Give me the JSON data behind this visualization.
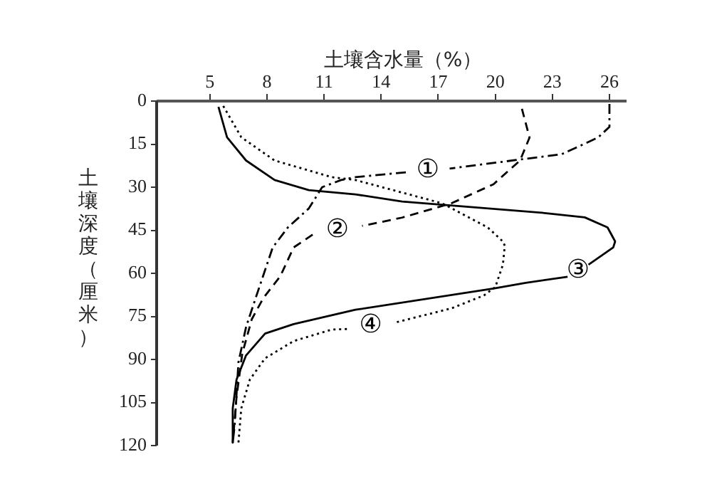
{
  "chart_data": {
    "type": "line",
    "title": "土壤含水量（%）",
    "ylabel": "土壤深度（厘米）",
    "xlim": [
      2.2,
      26.9
    ],
    "xticks": [
      5,
      8,
      11,
      14,
      17,
      20,
      23,
      26
    ],
    "ylim": [
      120,
      0
    ],
    "yticks": [
      0,
      15,
      30,
      45,
      60,
      75,
      90,
      105,
      120
    ],
    "grid": false,
    "legend": false,
    "marker": "none",
    "series": [
      {
        "name": "①",
        "color": "#000000",
        "line_style": "dashdot",
        "x": [
          26,
          26,
          25.4,
          23.5,
          17.6,
          null,
          15.3,
          12.65,
          11.9,
          10.9,
          10.2,
          9.1,
          8.3,
          7.4,
          6.9,
          6.5,
          6.3,
          6.2
        ],
        "values": [
          1,
          9,
          12.7,
          18.5,
          23.5,
          null,
          24.8,
          26.5,
          27.5,
          30,
          37.4,
          44,
          51,
          68.7,
          78.7,
          91,
          113,
          119
        ]
      },
      {
        "name": "②",
        "color": "#000000",
        "line_style": "dashed",
        "x": [
          21.4,
          21.8,
          21.3,
          19.9,
          17.7,
          15.1,
          13,
          null,
          10.4,
          9.4,
          8.7,
          7.8,
          7.2,
          6.7,
          6.4,
          6.2
        ],
        "values": [
          2.7,
          12.7,
          20.7,
          29,
          35.6,
          40.6,
          43.5,
          null,
          46.5,
          51,
          61,
          68.7,
          76,
          88,
          103,
          119
        ]
      },
      {
        "name": "③",
        "color": "#000000",
        "line_style": "solid",
        "x": [
          5.45,
          5.9,
          6.9,
          8.4,
          10.2,
          12.65,
          15.1,
          22.6,
          24.7,
          25.9,
          26.3,
          26.2,
          24.9,
          null,
          23.8,
          21.6,
          19.9,
          12.65,
          9.4,
          7.9,
          6.9,
          6.4,
          6.2,
          6.2
        ],
        "values": [
          2,
          12.6,
          20.7,
          27.5,
          31,
          32.5,
          35,
          39,
          40.5,
          44,
          48.9,
          51,
          57,
          null,
          61.2,
          63.3,
          65.3,
          72.7,
          77.7,
          81,
          88.6,
          97,
          107,
          119
        ]
      },
      {
        "name": "④",
        "color": "#000000",
        "line_style": "dotted",
        "x": [
          5.7,
          6.65,
          8.4,
          11.4,
          12.65,
          17.2,
          19.6,
          20.4,
          20.5,
          20.4,
          20,
          19.4,
          17.7,
          14.7,
          null,
          12.2,
          11.4,
          9.4,
          7.9,
          7.1,
          6.65,
          6.5
        ],
        "values": [
          1.7,
          12.6,
          20.7,
          26.5,
          27.5,
          35.6,
          44,
          48.9,
          50.4,
          57,
          64.8,
          67.7,
          72.2,
          77.2,
          null,
          79.4,
          79.6,
          83.6,
          89.6,
          97,
          107,
          119
        ]
      }
    ]
  }
}
